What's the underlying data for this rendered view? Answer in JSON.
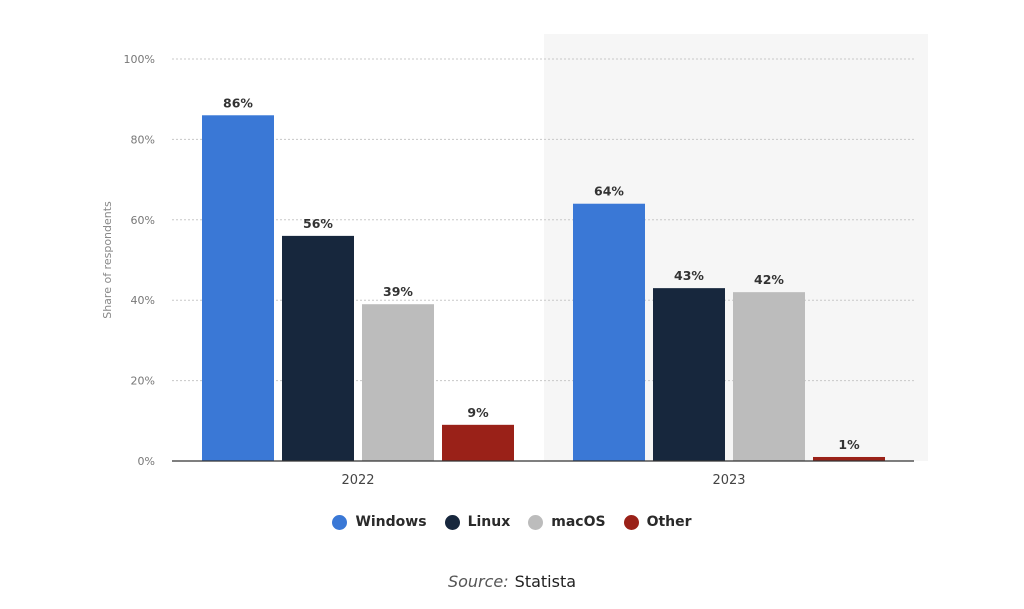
{
  "colors": {
    "windows": "#3a78d6",
    "linux": "#17273d",
    "macos": "#bcbcbc",
    "other": "#9a2118",
    "highlight_band": "#f6f6f6",
    "grid": "#c8c8c8",
    "axis": "#333333"
  },
  "chart_data": {
    "type": "bar",
    "title": "",
    "xlabel": "",
    "ylabel": "Share of respondents",
    "ylim": [
      0,
      100
    ],
    "y_ticks": [
      0,
      20,
      40,
      60,
      80,
      100
    ],
    "y_tick_suffix": "%",
    "categories": [
      "2022",
      "2023"
    ],
    "highlighted_category": "2023",
    "grid": true,
    "legend_position": "bottom",
    "series": [
      {
        "name": "Windows",
        "color_key": "windows",
        "values": [
          86,
          64
        ],
        "labels": [
          "86%",
          "64%"
        ]
      },
      {
        "name": "Linux",
        "color_key": "linux",
        "values": [
          56,
          43
        ],
        "labels": [
          "56%",
          "43%"
        ]
      },
      {
        "name": "macOS",
        "color_key": "macos",
        "values": [
          39,
          42
        ],
        "labels": [
          "39%",
          "42%"
        ]
      },
      {
        "name": "Other",
        "color_key": "other",
        "values": [
          9,
          1
        ],
        "labels": [
          "9%",
          "1%"
        ]
      }
    ]
  },
  "source": {
    "prefix": "Source:",
    "name": "Statista"
  }
}
